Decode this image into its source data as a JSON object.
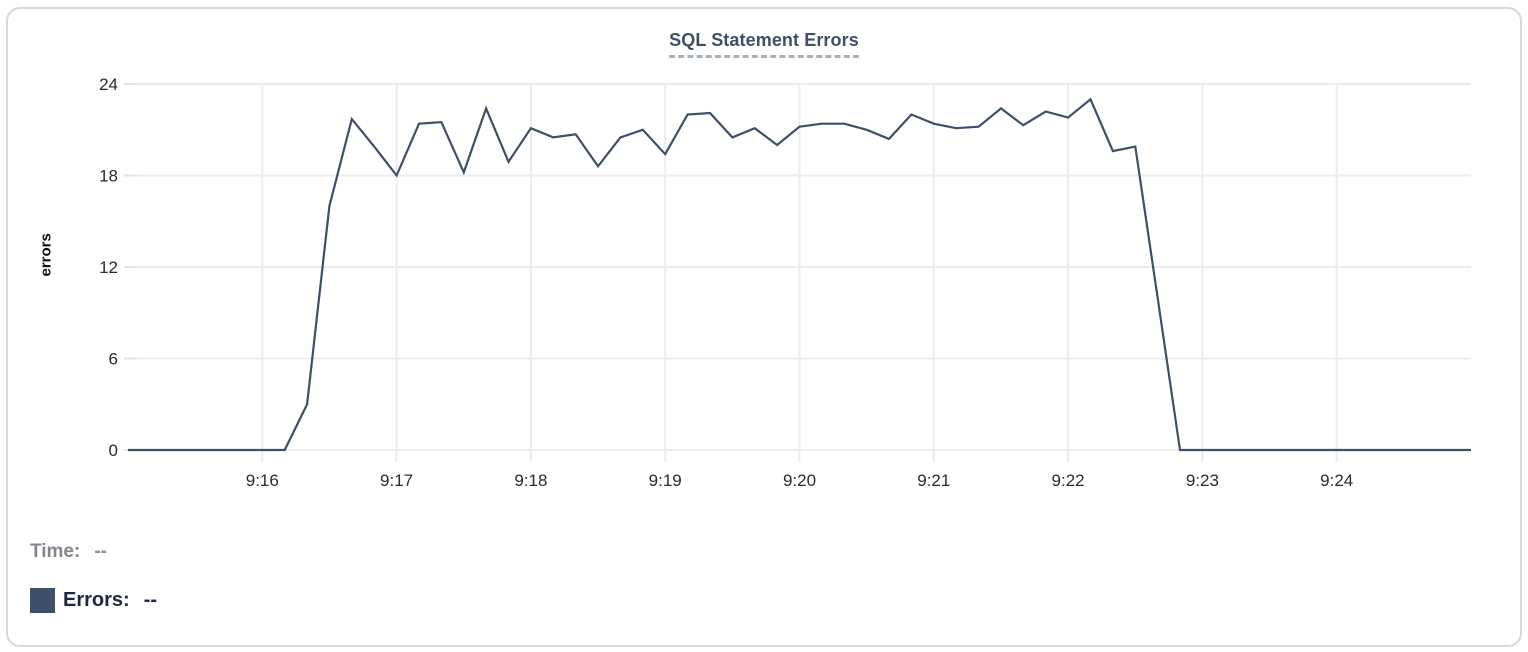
{
  "accent_colors": {
    "line": "#3e4e6b",
    "grid": "#ececec",
    "title": "#3d5068",
    "tick_text": "#2b2b2b"
  },
  "chart_data": {
    "type": "line",
    "title": "SQL Statement Errors",
    "xlabel": "",
    "ylabel": "errors",
    "ylim": [
      0,
      24
    ],
    "yticks": [
      0,
      6,
      12,
      18,
      24
    ],
    "xticks": [
      "9:16",
      "9:17",
      "9:18",
      "9:19",
      "9:20",
      "9:21",
      "9:22",
      "9:23",
      "9:24"
    ],
    "x_range": [
      "9:15:00",
      "9:25:00"
    ],
    "grid": "on",
    "legend_position": "bottom-left",
    "line_color": "#3e4e6b",
    "series": [
      {
        "name": "Errors",
        "points": [
          [
            "9:15:00",
            0
          ],
          [
            "9:15:10",
            0
          ],
          [
            "9:15:20",
            0
          ],
          [
            "9:15:30",
            0
          ],
          [
            "9:15:40",
            0
          ],
          [
            "9:15:50",
            0
          ],
          [
            "9:16:00",
            0
          ],
          [
            "9:16:10",
            0
          ],
          [
            "9:16:20",
            3
          ],
          [
            "9:16:30",
            16
          ],
          [
            "9:16:40",
            21.7
          ],
          [
            "9:16:50",
            19.9
          ],
          [
            "9:17:00",
            18
          ],
          [
            "9:17:10",
            21.4
          ],
          [
            "9:17:20",
            21.5
          ],
          [
            "9:17:30",
            18.2
          ],
          [
            "9:17:40",
            22.4
          ],
          [
            "9:17:50",
            18.9
          ],
          [
            "9:18:00",
            21.1
          ],
          [
            "9:18:10",
            20.5
          ],
          [
            "9:18:20",
            20.7
          ],
          [
            "9:18:30",
            18.6
          ],
          [
            "9:18:40",
            20.5
          ],
          [
            "9:18:50",
            21
          ],
          [
            "9:19:00",
            19.4
          ],
          [
            "9:19:10",
            22
          ],
          [
            "9:19:20",
            22.1
          ],
          [
            "9:19:30",
            20.5
          ],
          [
            "9:19:40",
            21.1
          ],
          [
            "9:19:50",
            20
          ],
          [
            "9:20:00",
            21.2
          ],
          [
            "9:20:10",
            21.4
          ],
          [
            "9:20:20",
            21.4
          ],
          [
            "9:20:30",
            21
          ],
          [
            "9:20:40",
            20.4
          ],
          [
            "9:20:50",
            22
          ],
          [
            "9:21:00",
            21.4
          ],
          [
            "9:21:10",
            21.1
          ],
          [
            "9:21:20",
            21.2
          ],
          [
            "9:21:30",
            22.4
          ],
          [
            "9:21:40",
            21.3
          ],
          [
            "9:21:50",
            22.2
          ],
          [
            "9:22:00",
            21.8
          ],
          [
            "9:22:10",
            23
          ],
          [
            "9:22:20",
            19.6
          ],
          [
            "9:22:30",
            19.9
          ],
          [
            "9:22:40",
            10
          ],
          [
            "9:22:50",
            0
          ],
          [
            "9:23:00",
            0
          ],
          [
            "9:23:10",
            0
          ],
          [
            "9:23:20",
            0
          ],
          [
            "9:23:30",
            0
          ],
          [
            "9:23:40",
            0
          ],
          [
            "9:23:50",
            0
          ],
          [
            "9:24:00",
            0
          ],
          [
            "9:24:10",
            0
          ],
          [
            "9:24:20",
            0
          ],
          [
            "9:24:30",
            0
          ],
          [
            "9:24:40",
            0
          ],
          [
            "9:24:50",
            0
          ],
          [
            "9:25:00",
            0
          ]
        ]
      }
    ]
  },
  "readout": {
    "time_label": "Time:",
    "time_value": "--",
    "errors_label": "Errors:",
    "errors_value": "--",
    "swatch_color": "#3e4e6b"
  }
}
